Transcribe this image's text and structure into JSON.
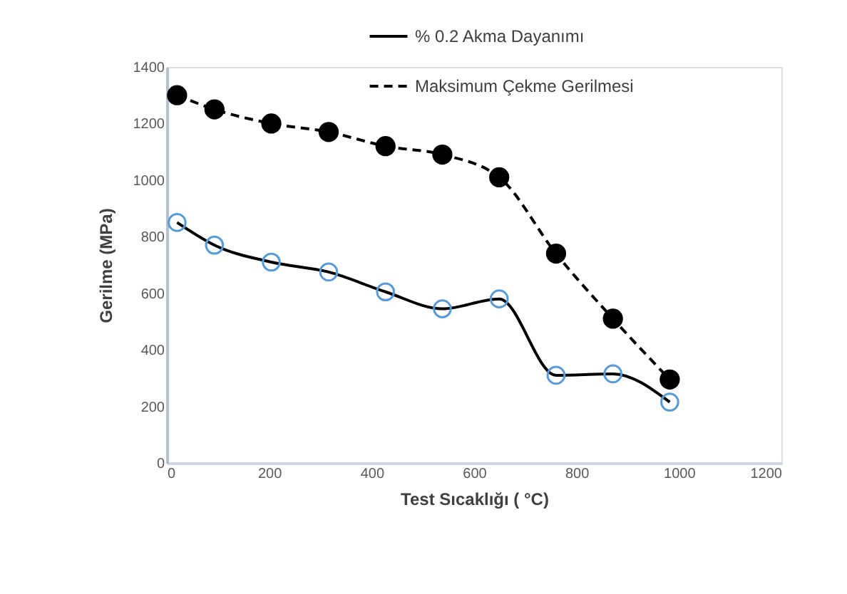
{
  "chart_data": {
    "type": "line",
    "xlabel": "Test Sıcaklığı ( °C)",
    "ylabel": "Gerilme (MPa)",
    "x": [
      20,
      93,
      204,
      316,
      427,
      538,
      649,
      760,
      871,
      982
    ],
    "series": [
      {
        "name": "% 0.2 Akma Dayanımı",
        "color": "#000000",
        "colors": [
          "#5b9bd5",
          "#5b9bd5",
          "#5b9bd5",
          "#5b9bd5",
          "#5b9bd5",
          "#5b9bd5",
          "#5b9bd5",
          "#5b9bd5",
          "#5b9bd5",
          "#5b9bd5"
        ],
        "marker": "open_circle",
        "line_style": "solid",
        "values": [
          850,
          770,
          710,
          675,
          605,
          545,
          580,
          310,
          315,
          215
        ]
      },
      {
        "name": "Maksimum Çekme Gerilmesi",
        "color": "#000000",
        "marker": "circle",
        "line_style": "dashed",
        "values": [
          1300,
          1250,
          1200,
          1170,
          1120,
          1090,
          1010,
          740,
          510,
          295
        ]
      }
    ],
    "xlim": [
      0,
      1200
    ],
    "xticks": [
      0,
      200,
      400,
      600,
      800,
      1000,
      1200
    ],
    "ylim": [
      0,
      1400
    ],
    "yticks": [
      0,
      200,
      400,
      600,
      800,
      1000,
      1200,
      1400
    ],
    "grid": false,
    "legend": "top right"
  }
}
